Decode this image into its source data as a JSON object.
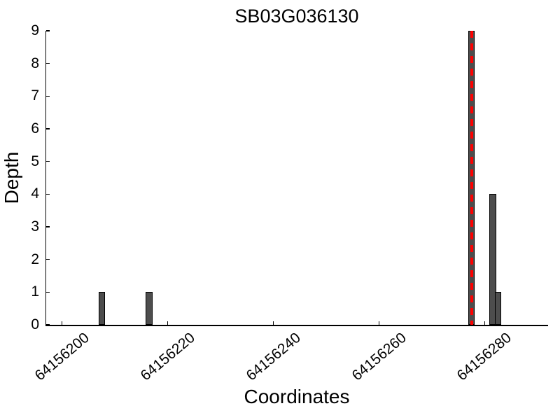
{
  "chart_data": {
    "type": "bar",
    "title": "SB03G036130",
    "xlabel": "Coordinates",
    "ylabel": "Depth",
    "bars": [
      {
        "x": 64156207,
        "depth": 1
      },
      {
        "x": 64156216,
        "depth": 1
      },
      {
        "x": 64156277,
        "depth": 9
      },
      {
        "x": 64156281,
        "depth": 4
      },
      {
        "x": 64156282,
        "depth": 1
      }
    ],
    "bar_width": 1,
    "bar_fill": "#4d4d4d",
    "bar_edge": "#000000",
    "highlight_line": {
      "x": 64156277.5,
      "color": "#ff0000",
      "style": "dashed"
    },
    "xticks": [
      64156200,
      64156220,
      64156240,
      64156260,
      64156280
    ],
    "yticks": [
      0,
      1,
      2,
      3,
      4,
      5,
      6,
      7,
      8,
      9
    ],
    "xlim": [
      64156197,
      64156292
    ],
    "ylim": [
      0,
      9
    ],
    "grid": false,
    "legend": null
  }
}
